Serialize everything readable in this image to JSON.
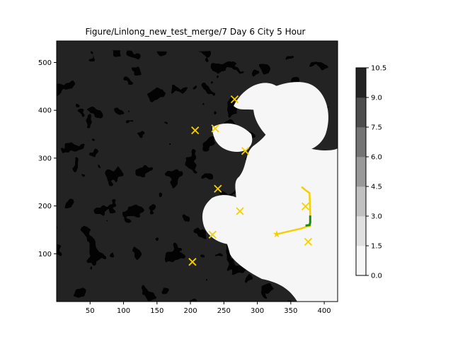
{
  "chart_data": {
    "type": "heatmap",
    "title": "Figure/Linlong_new_test_merge/7 Day 6 City 5 Hour",
    "xlabel": "",
    "ylabel": "",
    "xlim": [
      0,
      420
    ],
    "ylim": [
      0,
      545
    ],
    "x_ticks": [
      "50",
      "100",
      "150",
      "200",
      "250",
      "300",
      "350",
      "400"
    ],
    "y_ticks": [
      "100",
      "200",
      "300",
      "400",
      "500"
    ],
    "colorbar": {
      "levels": [
        "0.0",
        "1.5",
        "3.0",
        "4.5",
        "6.0",
        "7.5",
        "9.0",
        "10.5"
      ],
      "colors": [
        "#f7f7f7",
        "#e0e0e0",
        "#c1c1c1",
        "#999999",
        "#747474",
        "#4d4d4d",
        "#232323"
      ]
    },
    "field_colors": {
      "high": "#232323",
      "low": "#f6f6f6"
    },
    "cities": [
      {
        "x": 266,
        "y": 423
      },
      {
        "x": 207,
        "y": 358
      },
      {
        "x": 237,
        "y": 362
      },
      {
        "x": 282,
        "y": 315
      },
      {
        "x": 241,
        "y": 236
      },
      {
        "x": 274,
        "y": 189
      },
      {
        "x": 233,
        "y": 140
      },
      {
        "x": 203,
        "y": 83
      },
      {
        "x": 372,
        "y": 199
      },
      {
        "x": 376,
        "y": 125
      }
    ],
    "origin_star": {
      "x": 329,
      "y": 141
    },
    "yellow_path": [
      [
        329,
        141
      ],
      [
        366,
        153
      ],
      [
        374,
        157
      ],
      [
        379,
        158
      ],
      [
        379,
        186
      ],
      [
        378,
        227
      ],
      [
        372,
        233
      ],
      [
        366,
        240
      ]
    ],
    "green_path": [
      [
        372,
        159
      ],
      [
        378,
        160
      ],
      [
        379,
        165
      ],
      [
        379,
        180
      ]
    ],
    "marker_color": "#f5d000",
    "path_color": "#f5d000",
    "green_color": "#1a8a1a"
  }
}
